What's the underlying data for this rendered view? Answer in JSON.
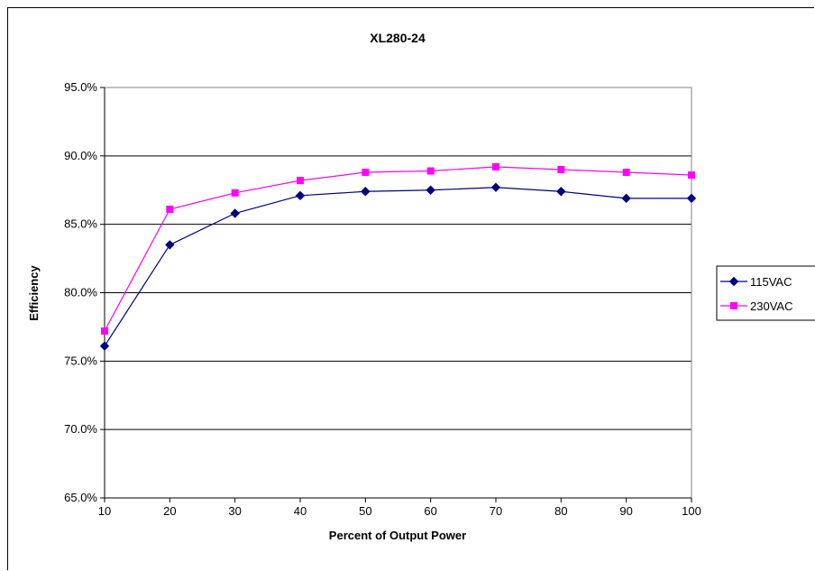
{
  "chart_data": {
    "type": "line",
    "title": "XL280-24",
    "xlabel": "Percent of Output Power",
    "ylabel": "Efficiency",
    "x": [
      10,
      20,
      30,
      40,
      50,
      60,
      70,
      80,
      90,
      100
    ],
    "x_tick_labels": [
      "10",
      "20",
      "30",
      "40",
      "50",
      "60",
      "70",
      "80",
      "90",
      "100"
    ],
    "xlim": [
      10,
      100
    ],
    "ylim": [
      65,
      95
    ],
    "y_ticks": [
      65,
      70,
      75,
      80,
      85,
      90,
      95
    ],
    "y_tick_labels": [
      "65.0%",
      "70.0%",
      "75.0%",
      "80.0%",
      "85.0%",
      "90.0%",
      "95.0%"
    ],
    "grid": "horizontal",
    "legend_position": "right",
    "series": [
      {
        "name": "115VAC",
        "color": "#000080",
        "marker": "diamond",
        "values": [
          76.1,
          83.5,
          85.8,
          87.1,
          87.4,
          87.5,
          87.7,
          87.4,
          86.9,
          86.9
        ]
      },
      {
        "name": "230VAC",
        "color": "#ff00ff",
        "marker": "square",
        "values": [
          77.2,
          86.1,
          87.3,
          88.2,
          88.8,
          88.9,
          89.2,
          89.0,
          88.8,
          88.6
        ]
      }
    ]
  }
}
